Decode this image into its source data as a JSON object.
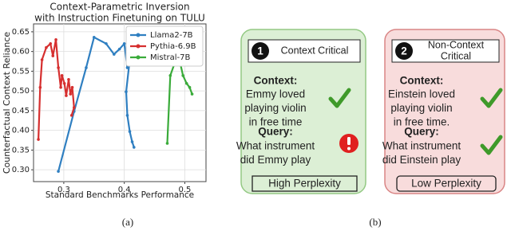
{
  "chart_data": {
    "type": "line",
    "title": [
      "Context-Parametric Inversion",
      "with Instruction Finetuning on TULU"
    ],
    "x_label": "Standard Benchmarks Performance",
    "y_label": "Counterfactual Context Reliance",
    "xlim": [
      0.25,
      0.535
    ],
    "xticks": [
      0.3,
      0.4,
      0.5
    ],
    "ylim": [
      0.27,
      0.67
    ],
    "yticks": [
      {
        "value": 0.3,
        "label": "0.30"
      },
      {
        "value": 0.35,
        "label": "0.35"
      },
      {
        "value": 0.4,
        "label": "0.40"
      },
      {
        "value": 0.45,
        "label": "0.45"
      },
      {
        "value": 0.5,
        "label": "0.50"
      },
      {
        "value": 0.55,
        "label": "0.55"
      },
      {
        "value": 0.6,
        "label": "0.60"
      },
      {
        "value": 0.65,
        "label": "0.65"
      }
    ],
    "grid": true,
    "legend": "upper right",
    "series": [
      {
        "name": "Llama2-7B",
        "color": "#2f7fc1",
        "x": [
          0.291,
          0.317,
          0.337,
          0.35,
          0.37,
          0.383,
          0.392,
          0.4,
          0.405,
          0.409,
          0.403,
          0.405,
          0.409,
          0.413,
          0.416
        ],
        "values": [
          0.296,
          0.448,
          0.559,
          0.636,
          0.62,
          0.593,
          0.606,
          0.62,
          0.559,
          0.579,
          0.498,
          0.438,
          0.397,
          0.371,
          0.357
        ]
      },
      {
        "name": "Pythia-6.9B",
        "color": "#d62f2f",
        "x": [
          0.258,
          0.261,
          0.264,
          0.271,
          0.278,
          0.282,
          0.287,
          0.291,
          0.295,
          0.297,
          0.301,
          0.304,
          0.308,
          0.311,
          0.314,
          0.317,
          0.313
        ],
        "values": [
          0.377,
          0.509,
          0.579,
          0.61,
          0.62,
          0.589,
          0.63,
          0.559,
          0.509,
          0.539,
          0.519,
          0.488,
          0.529,
          0.492,
          0.509,
          0.458,
          0.438
        ]
      },
      {
        "name": "Mistral-7B",
        "color": "#3aab3a",
        "x": [
          0.471,
          0.476,
          0.482,
          0.488,
          0.492,
          0.497,
          0.503,
          0.508,
          0.512
        ],
        "values": [
          0.367,
          0.539,
          0.565,
          0.573,
          0.573,
          0.539,
          0.519,
          0.509,
          0.492
        ]
      }
    ]
  },
  "panels": [
    {
      "number": "1",
      "header": [
        "Context Critical"
      ],
      "context_label": "Context:",
      "context": [
        "Emmy loved",
        "playing violin",
        "in free time"
      ],
      "query_label": "Query:",
      "query": [
        "What instrument",
        "did Emmy play"
      ],
      "footer": "High Perplexity"
    },
    {
      "number": "2",
      "header": [
        "Non-Context",
        "Critical"
      ],
      "context_label": "Context:",
      "context": [
        "Einstein loved",
        "playing violin",
        "in free time."
      ],
      "query_label": "Query:",
      "query": [
        "What instrument",
        "did Einstein play"
      ],
      "footer": "Low Perplexity"
    }
  ],
  "captions": [
    "(a)",
    "(b)"
  ]
}
